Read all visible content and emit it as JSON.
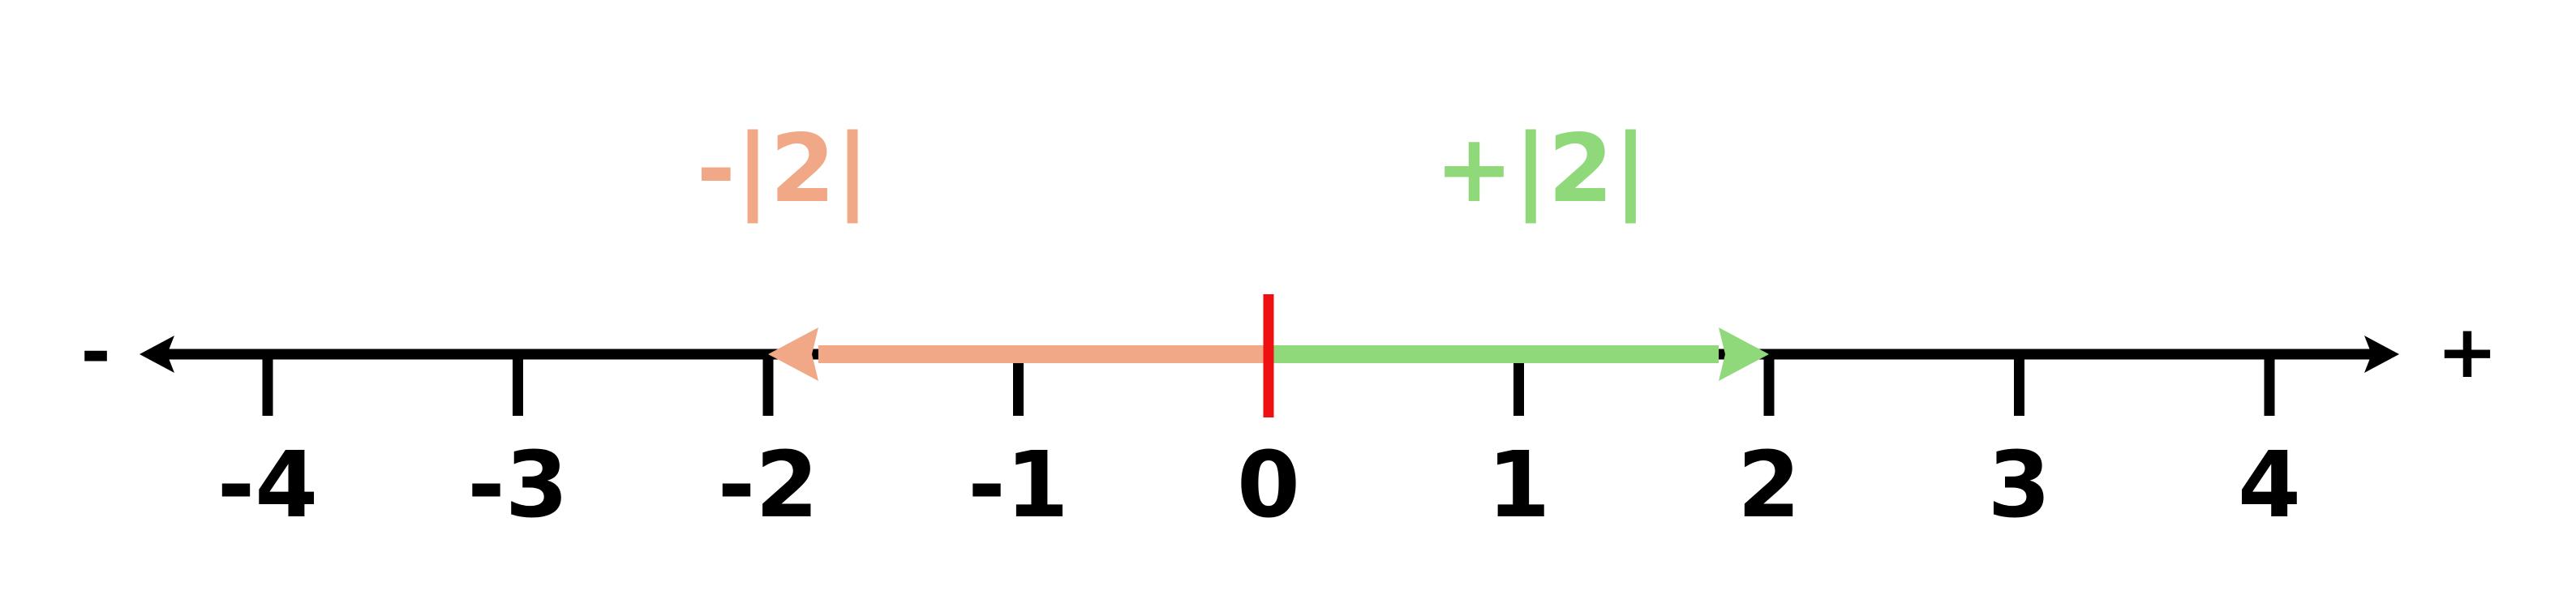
{
  "number_line": {
    "min": -4,
    "max": 4,
    "ticks": [
      -4,
      -3,
      -2,
      -1,
      0,
      1,
      2,
      3,
      4
    ],
    "tick_labels": [
      "-4",
      "-3",
      "-2",
      "-1",
      "0",
      "1",
      "2",
      "3",
      "4"
    ],
    "negative_end_label": "-",
    "positive_end_label": "+",
    "origin_value": 0,
    "colors": {
      "axis": "#000000",
      "origin_marker": "#ee1111",
      "negative": "#f0a886",
      "positive": "#8fd97a"
    }
  },
  "arrows": {
    "negative": {
      "from": 0,
      "to": -2,
      "label": "-|2|"
    },
    "positive": {
      "from": 0,
      "to": 2,
      "label": "+|2|"
    }
  }
}
